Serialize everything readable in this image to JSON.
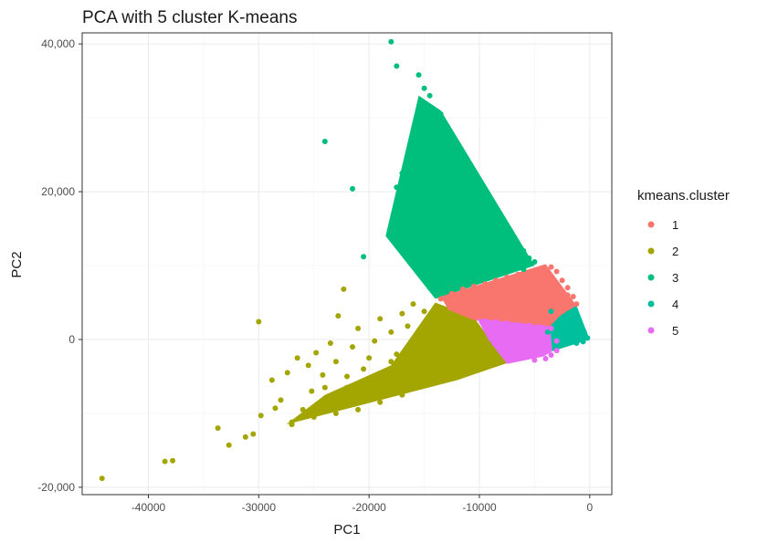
{
  "chart_data": {
    "type": "scatter",
    "title": "PCA with 5 cluster K-means",
    "xlabel": "PC1",
    "ylabel": "PC2",
    "xlim": [
      -46000,
      2000
    ],
    "ylim": [
      -21000,
      41500
    ],
    "x_ticks": [
      -40000,
      -30000,
      -20000,
      -10000,
      0
    ],
    "x_tick_labels": [
      "-40000",
      "-30000",
      "-20000",
      "-10000",
      "0"
    ],
    "y_ticks": [
      -20000,
      0,
      20000,
      40000
    ],
    "y_tick_labels": [
      "-20,000",
      "0",
      "20,000",
      "40,000"
    ],
    "grid": true,
    "legend_position": "right",
    "legend_title": "kmeans.cluster",
    "series": [
      {
        "name": "1",
        "color": "#F8766D",
        "points": [
          [
            -13500,
            5500
          ],
          [
            -12500,
            6200
          ],
          [
            -11500,
            6800
          ],
          [
            -10500,
            7200
          ],
          [
            -9500,
            7500
          ],
          [
            -8500,
            8000
          ],
          [
            -7500,
            8400
          ],
          [
            -6500,
            8800
          ],
          [
            -5500,
            9000
          ],
          [
            -4500,
            9500
          ],
          [
            -3500,
            9800
          ],
          [
            -3000,
            9200
          ],
          [
            -2500,
            8000
          ],
          [
            -2000,
            7000
          ],
          [
            -1500,
            5800
          ],
          [
            -1200,
            4800
          ],
          [
            -12500,
            5000
          ],
          [
            -11000,
            5200
          ],
          [
            -10000,
            5600
          ],
          [
            -9000,
            6000
          ],
          [
            -8000,
            6400
          ],
          [
            -7000,
            6700
          ],
          [
            -6000,
            7000
          ],
          [
            -5000,
            7400
          ],
          [
            -4000,
            7800
          ],
          [
            -3500,
            6800
          ],
          [
            -3000,
            5800
          ],
          [
            -2500,
            4800
          ],
          [
            -10500,
            4200
          ],
          [
            -9500,
            4500
          ],
          [
            -8500,
            4800
          ],
          [
            -7500,
            5000
          ],
          [
            -6500,
            5200
          ],
          [
            -5500,
            5500
          ],
          [
            -4500,
            5700
          ],
          [
            -4000,
            4200
          ],
          [
            -3500,
            3300
          ],
          [
            -11500,
            3800
          ],
          [
            -9000,
            3300
          ],
          [
            -7000,
            3600
          ],
          [
            -5000,
            3800
          ],
          [
            -6000,
            6000
          ],
          [
            -8000,
            7000
          ],
          [
            -10000,
            6500
          ],
          [
            -4000,
            6500
          ],
          [
            -2000,
            6000
          ],
          [
            -1800,
            5300
          ],
          [
            -12000,
            4400
          ],
          [
            -5000,
            4600
          ]
        ]
      },
      {
        "name": "2",
        "color": "#A3A500",
        "points": [
          [
            -44200,
            -18800
          ],
          [
            -38500,
            -16500
          ],
          [
            -37800,
            -16400
          ],
          [
            -33700,
            -12000
          ],
          [
            -32700,
            -14300
          ],
          [
            -31200,
            -13200
          ],
          [
            -30500,
            -12800
          ],
          [
            -30000,
            2400
          ],
          [
            -29800,
            -10300
          ],
          [
            -28800,
            -5500
          ],
          [
            -28500,
            -9300
          ],
          [
            -28000,
            -8200
          ],
          [
            -27400,
            -4500
          ],
          [
            -27000,
            -11500
          ],
          [
            -26500,
            -2500
          ],
          [
            -25500,
            -3500
          ],
          [
            -25200,
            -7000
          ],
          [
            -24800,
            -1800
          ],
          [
            -24200,
            -4800
          ],
          [
            -24000,
            -8500
          ],
          [
            -23500,
            -500
          ],
          [
            -23000,
            -3000
          ],
          [
            -22800,
            3200
          ],
          [
            -22300,
            6800
          ],
          [
            -22000,
            -6500
          ],
          [
            -21500,
            -1000
          ],
          [
            -21000,
            1500
          ],
          [
            -20500,
            -4000
          ],
          [
            -20000,
            -6800
          ],
          [
            -19500,
            -200
          ],
          [
            -19000,
            2800
          ],
          [
            -18500,
            -4500
          ],
          [
            -18000,
            1000
          ],
          [
            -17500,
            -2000
          ],
          [
            -17000,
            3500
          ],
          [
            -16500,
            -3500
          ],
          [
            -16000,
            4800
          ],
          [
            -15500,
            0
          ],
          [
            -15000,
            -5000
          ],
          [
            -14500,
            3000
          ],
          [
            -14000,
            -1500
          ],
          [
            -13500,
            -4000
          ],
          [
            -13000,
            2000
          ],
          [
            -12500,
            -500
          ],
          [
            -12000,
            -3000
          ],
          [
            -11500,
            1200
          ],
          [
            -11000,
            -2200
          ],
          [
            -10500,
            500
          ],
          [
            -10000,
            -1500
          ],
          [
            -9500,
            -3000
          ],
          [
            -12000,
            -500
          ],
          [
            -14000,
            1500
          ],
          [
            -16000,
            -2000
          ],
          [
            -18000,
            -3000
          ],
          [
            -20000,
            -2500
          ],
          [
            -22000,
            -5000
          ],
          [
            -24000,
            -6500
          ],
          [
            -26000,
            -9500
          ],
          [
            -11000,
            -3500
          ],
          [
            -13000,
            -4500
          ],
          [
            -15000,
            -6000
          ],
          [
            -17000,
            -7500
          ],
          [
            -19000,
            -8500
          ],
          [
            -21000,
            -9500
          ],
          [
            -23000,
            -10000
          ],
          [
            -25000,
            -10500
          ],
          [
            -27000,
            -11200
          ],
          [
            -12000,
            2500
          ],
          [
            -10500,
            2000
          ],
          [
            -15000,
            3800
          ],
          [
            -9500,
            -500
          ],
          [
            -10000,
            1000
          ],
          [
            -16500,
            1800
          ],
          [
            -19500,
            -5500
          ],
          [
            -11500,
            -4500
          ],
          [
            -13500,
            -1000
          ]
        ]
      },
      {
        "name": "3",
        "color": "#00BF7D",
        "points": [
          [
            -18000,
            40300
          ],
          [
            -17500,
            37000
          ],
          [
            -15500,
            35800
          ],
          [
            -15000,
            34000
          ],
          [
            -14500,
            33000
          ],
          [
            -24000,
            26800
          ],
          [
            -21500,
            20400
          ],
          [
            -17500,
            20600
          ],
          [
            -20500,
            11200
          ],
          [
            -17000,
            16000
          ],
          [
            -16500,
            14500
          ],
          [
            -16000,
            12000
          ],
          [
            -15500,
            10000
          ],
          [
            -15000,
            8500
          ],
          [
            -14500,
            7000
          ],
          [
            -16500,
            25000
          ],
          [
            -14000,
            28000
          ],
          [
            -13500,
            30500
          ],
          [
            -13000,
            26000
          ],
          [
            -12500,
            27500
          ],
          [
            -12000,
            24000
          ],
          [
            -11500,
            23000
          ],
          [
            -11000,
            21000
          ],
          [
            -10500,
            18500
          ],
          [
            -10000,
            17000
          ],
          [
            -9500,
            16000
          ],
          [
            -9000,
            14500
          ],
          [
            -8500,
            13000
          ],
          [
            -8000,
            12000
          ],
          [
            -7500,
            11000
          ],
          [
            -7000,
            10500
          ],
          [
            -6500,
            10000
          ],
          [
            -6000,
            9500
          ],
          [
            -15000,
            18000
          ],
          [
            -14500,
            22000
          ],
          [
            -14000,
            16500
          ],
          [
            -13500,
            19500
          ],
          [
            -13000,
            12500
          ],
          [
            -12500,
            15000
          ],
          [
            -12000,
            9500
          ],
          [
            -11500,
            13500
          ],
          [
            -11000,
            11000
          ],
          [
            -10500,
            8500
          ],
          [
            -10000,
            12500
          ],
          [
            -9500,
            10000
          ],
          [
            -9000,
            9000
          ],
          [
            -8500,
            10500
          ],
          [
            -8000,
            9200
          ],
          [
            -13000,
            8000
          ],
          [
            -14000,
            10500
          ],
          [
            -15500,
            15500
          ],
          [
            -16000,
            20000
          ],
          [
            -17000,
            22500
          ],
          [
            -12000,
            18500
          ],
          [
            -10000,
            20000
          ],
          [
            -11000,
            16000
          ],
          [
            -9000,
            18000
          ],
          [
            -8000,
            15500
          ],
          [
            -7000,
            13500
          ],
          [
            -6000,
            12000
          ],
          [
            -5500,
            11000
          ],
          [
            -5000,
            10500
          ],
          [
            -12500,
            21500
          ],
          [
            -11500,
            19000
          ],
          [
            -9500,
            13000
          ],
          [
            -14500,
            12500
          ],
          [
            -13500,
            14000
          ],
          [
            -15500,
            29000
          ],
          [
            -14000,
            24500
          ]
        ]
      },
      {
        "name": "4",
        "color": "#00BF9C",
        "points": [
          [
            -2500,
            2500
          ],
          [
            -2000,
            3500
          ],
          [
            -1500,
            3000
          ],
          [
            -1000,
            2000
          ],
          [
            -500,
            1000
          ],
          [
            -200,
            200
          ],
          [
            -3000,
            1200
          ],
          [
            -2500,
            700
          ],
          [
            -2000,
            1500
          ],
          [
            -1500,
            500
          ],
          [
            -1000,
            800
          ],
          [
            -3500,
            3800
          ],
          [
            -3000,
            2200
          ],
          [
            -2200,
            -300
          ],
          [
            -1200,
            -500
          ],
          [
            -600,
            -300
          ],
          [
            -3800,
            1000
          ],
          [
            -1800,
            2200
          ]
        ]
      },
      {
        "name": "5",
        "color": "#E76BF3",
        "points": [
          [
            -9500,
            2500
          ],
          [
            -8500,
            2400
          ],
          [
            -7500,
            2200
          ],
          [
            -6500,
            2000
          ],
          [
            -5500,
            1900
          ],
          [
            -4500,
            1700
          ],
          [
            -3500,
            1500
          ],
          [
            -8000,
            1000
          ],
          [
            -7000,
            800
          ],
          [
            -6000,
            500
          ],
          [
            -5000,
            300
          ],
          [
            -4000,
            100
          ],
          [
            -3000,
            -200
          ],
          [
            -7500,
            -600
          ],
          [
            -6500,
            -1000
          ],
          [
            -5500,
            -1400
          ],
          [
            -4500,
            -1800
          ],
          [
            -3500,
            -2100
          ],
          [
            -9000,
            1500
          ],
          [
            -8500,
            -200
          ],
          [
            -7000,
            -1800
          ],
          [
            -6000,
            -2500
          ],
          [
            -5000,
            -2800
          ],
          [
            -4000,
            -2600
          ],
          [
            -3000,
            -1500
          ]
        ]
      }
    ]
  }
}
